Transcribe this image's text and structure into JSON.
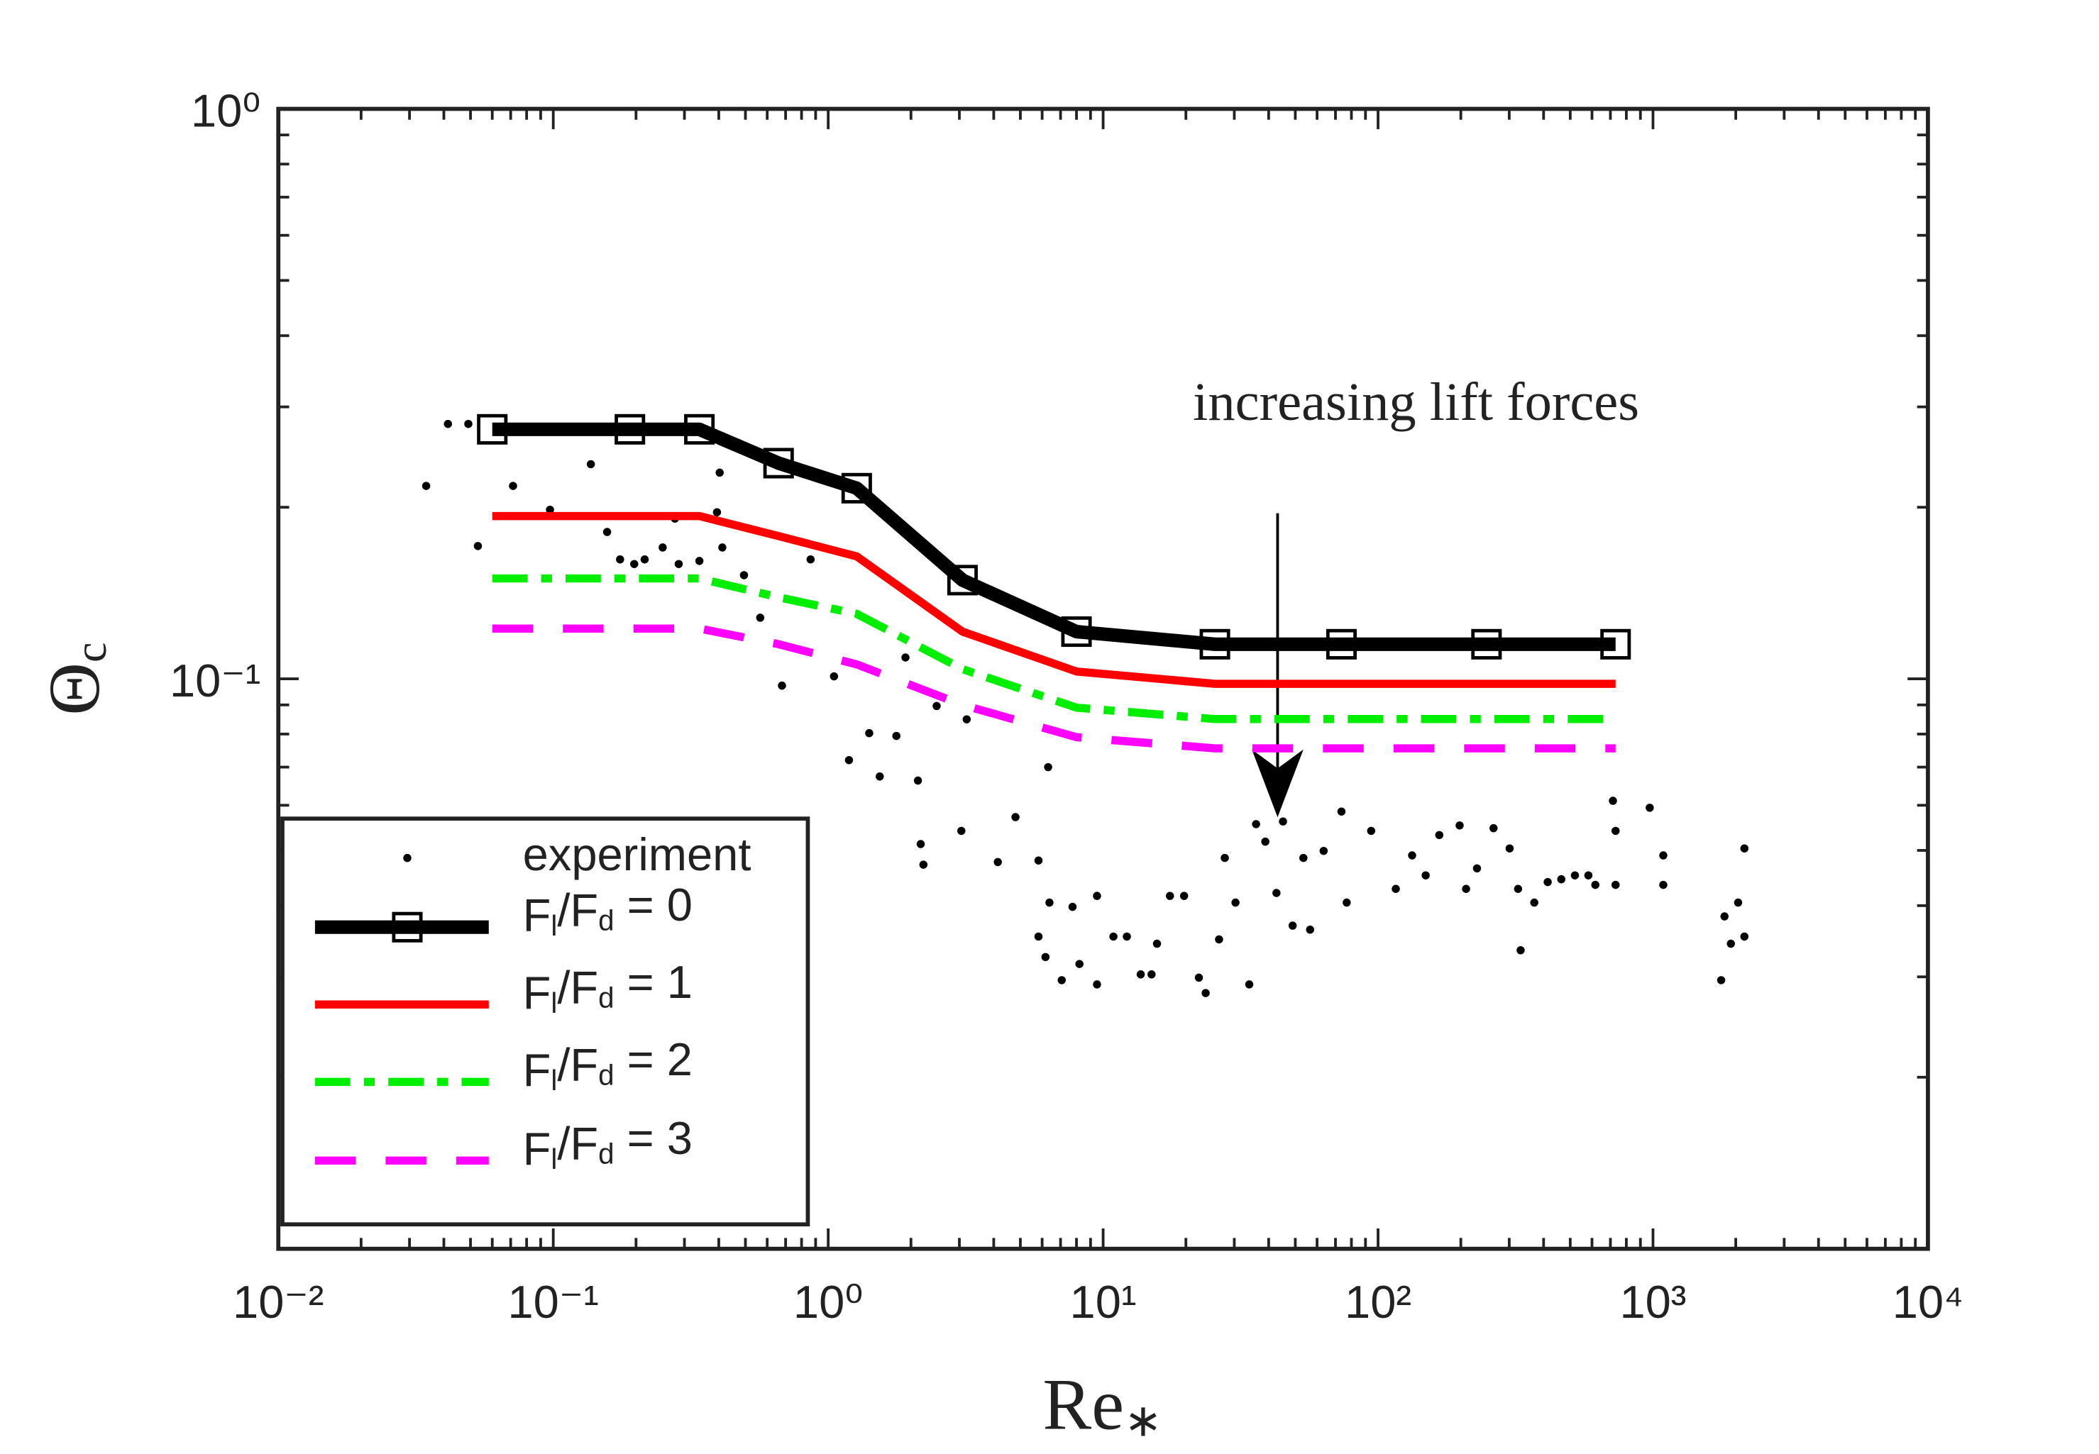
{
  "chart_data": {
    "type": "line",
    "xlabel": "Re∗",
    "ylabel": "Θc",
    "annotation": "increasing lift forces",
    "xscale": "log",
    "yscale": "log",
    "xlim": [
      0.01,
      10000
    ],
    "ylim": [
      0.01,
      1
    ],
    "xticks": [
      {
        "value": 0.01,
        "label": "10⁻²"
      },
      {
        "value": 0.1,
        "label": "10⁻¹"
      },
      {
        "value": 1,
        "label": "10⁰"
      },
      {
        "value": 10,
        "label": "10¹"
      },
      {
        "value": 100,
        "label": "10²"
      },
      {
        "value": 1000,
        "label": "10³"
      },
      {
        "value": 10000,
        "label": "10⁴"
      }
    ],
    "yticks": [
      {
        "value": 0.1,
        "label": "10⁻¹"
      },
      {
        "value": 1,
        "label": "10⁰"
      }
    ],
    "legend": "lower left",
    "scatter": {
      "name": "experiment",
      "color": "#000000",
      "x": [
        0.0414,
        0.0491,
        0.0345,
        0.0532,
        0.0714,
        0.0973,
        0.137,
        0.157,
        0.175,
        0.197,
        0.215,
        0.25,
        0.277,
        0.286,
        0.34,
        0.394,
        0.403,
        0.412,
        0.494,
        0.566,
        0.679,
        0.863,
        1.05,
        1.19,
        1.41,
        1.54,
        1.77,
        1.91,
        2.12,
        2.48,
        3.19,
        6.31,
        2.17,
        2.22,
        3.05,
        4.14,
        4.8,
        5.82,
        6.38,
        5.82,
        6.17,
        7.07,
        7.74,
        8.2,
        9.5,
        9.5,
        10.9,
        12.2,
        13.7,
        15.0,
        15.7,
        17.5,
        19.7,
        22.3,
        23.6,
        26.4,
        27.7,
        30.3,
        34.0,
        36.0,
        38.9,
        42.7,
        45.1,
        48.9,
        53.5,
        56.6,
        63.4,
        76.9,
        73.6,
        94.4,
        116,
        133,
        149,
        167,
        198,
        209,
        229,
        263,
        301,
        323,
        330,
        370,
        414,
        464,
        520,
        582,
        715,
        731,
        973,
        1090,
        1090,
        1770,
        1920,
        2150,
        2040,
        2150,
        1820,
        731,
        617
      ],
      "y": [
        0.28,
        0.28,
        0.218,
        0.171,
        0.218,
        0.198,
        0.238,
        0.181,
        0.162,
        0.159,
        0.162,
        0.17,
        0.191,
        0.159,
        0.161,
        0.196,
        0.23,
        0.17,
        0.152,
        0.128,
        0.0973,
        0.162,
        0.101,
        0.072,
        0.0803,
        0.0674,
        0.0794,
        0.109,
        0.0663,
        0.0896,
        0.0849,
        0.07,
        0.0513,
        0.0472,
        0.0541,
        0.0477,
        0.0572,
        0.048,
        0.0405,
        0.0353,
        0.0325,
        0.0296,
        0.0398,
        0.0316,
        0.0416,
        0.0291,
        0.0353,
        0.0353,
        0.0303,
        0.0303,
        0.0343,
        0.0416,
        0.0416,
        0.0299,
        0.0281,
        0.0349,
        0.0485,
        0.0405,
        0.0291,
        0.0556,
        0.0518,
        0.0421,
        0.0562,
        0.0369,
        0.0485,
        0.0363,
        0.0499,
        0.0405,
        0.0585,
        0.0541,
        0.0428,
        0.049,
        0.0452,
        0.0532,
        0.0553,
        0.0428,
        0.0465,
        0.0547,
        0.0504,
        0.0428,
        0.0334,
        0.0405,
        0.044,
        0.0445,
        0.0452,
        0.0452,
        0.0611,
        0.0541,
        0.0594,
        0.049,
        0.0435,
        0.0296,
        0.0343,
        0.0353,
        0.0405,
        0.0504,
        0.0383,
        0.0435,
        0.0435
      ]
    },
    "x": [
      0.06,
      0.19,
      0.34,
      0.66,
      1.27,
      3.08,
      8.0,
      25.5,
      73.6,
      248,
      731
    ],
    "series": [
      {
        "name": "Fl/Fd = 0",
        "color": "#000000",
        "style": "solid-square",
        "values": [
          0.274,
          0.274,
          0.274,
          0.239,
          0.216,
          0.149,
          0.121,
          0.115,
          0.115,
          0.115,
          0.115
        ]
      },
      {
        "name": "Fl/Fd = 1",
        "color": "#ff0000",
        "style": "solid",
        "values": [
          0.193,
          0.193,
          0.193,
          0.178,
          0.164,
          0.121,
          0.103,
          0.098,
          0.098,
          0.098,
          0.098
        ]
      },
      {
        "name": "Fl/Fd = 2",
        "color": "#00ee00",
        "style": "dashdot",
        "values": [
          0.15,
          0.15,
          0.15,
          0.139,
          0.13,
          0.104,
          0.089,
          0.085,
          0.085,
          0.085,
          0.085
        ]
      },
      {
        "name": "Fl/Fd = 3",
        "color": "#ff00ff",
        "style": "dashed",
        "values": [
          0.1225,
          0.1225,
          0.1225,
          0.115,
          0.106,
          0.09,
          0.079,
          0.0755,
          0.0755,
          0.0755,
          0.0755
        ]
      }
    ]
  }
}
